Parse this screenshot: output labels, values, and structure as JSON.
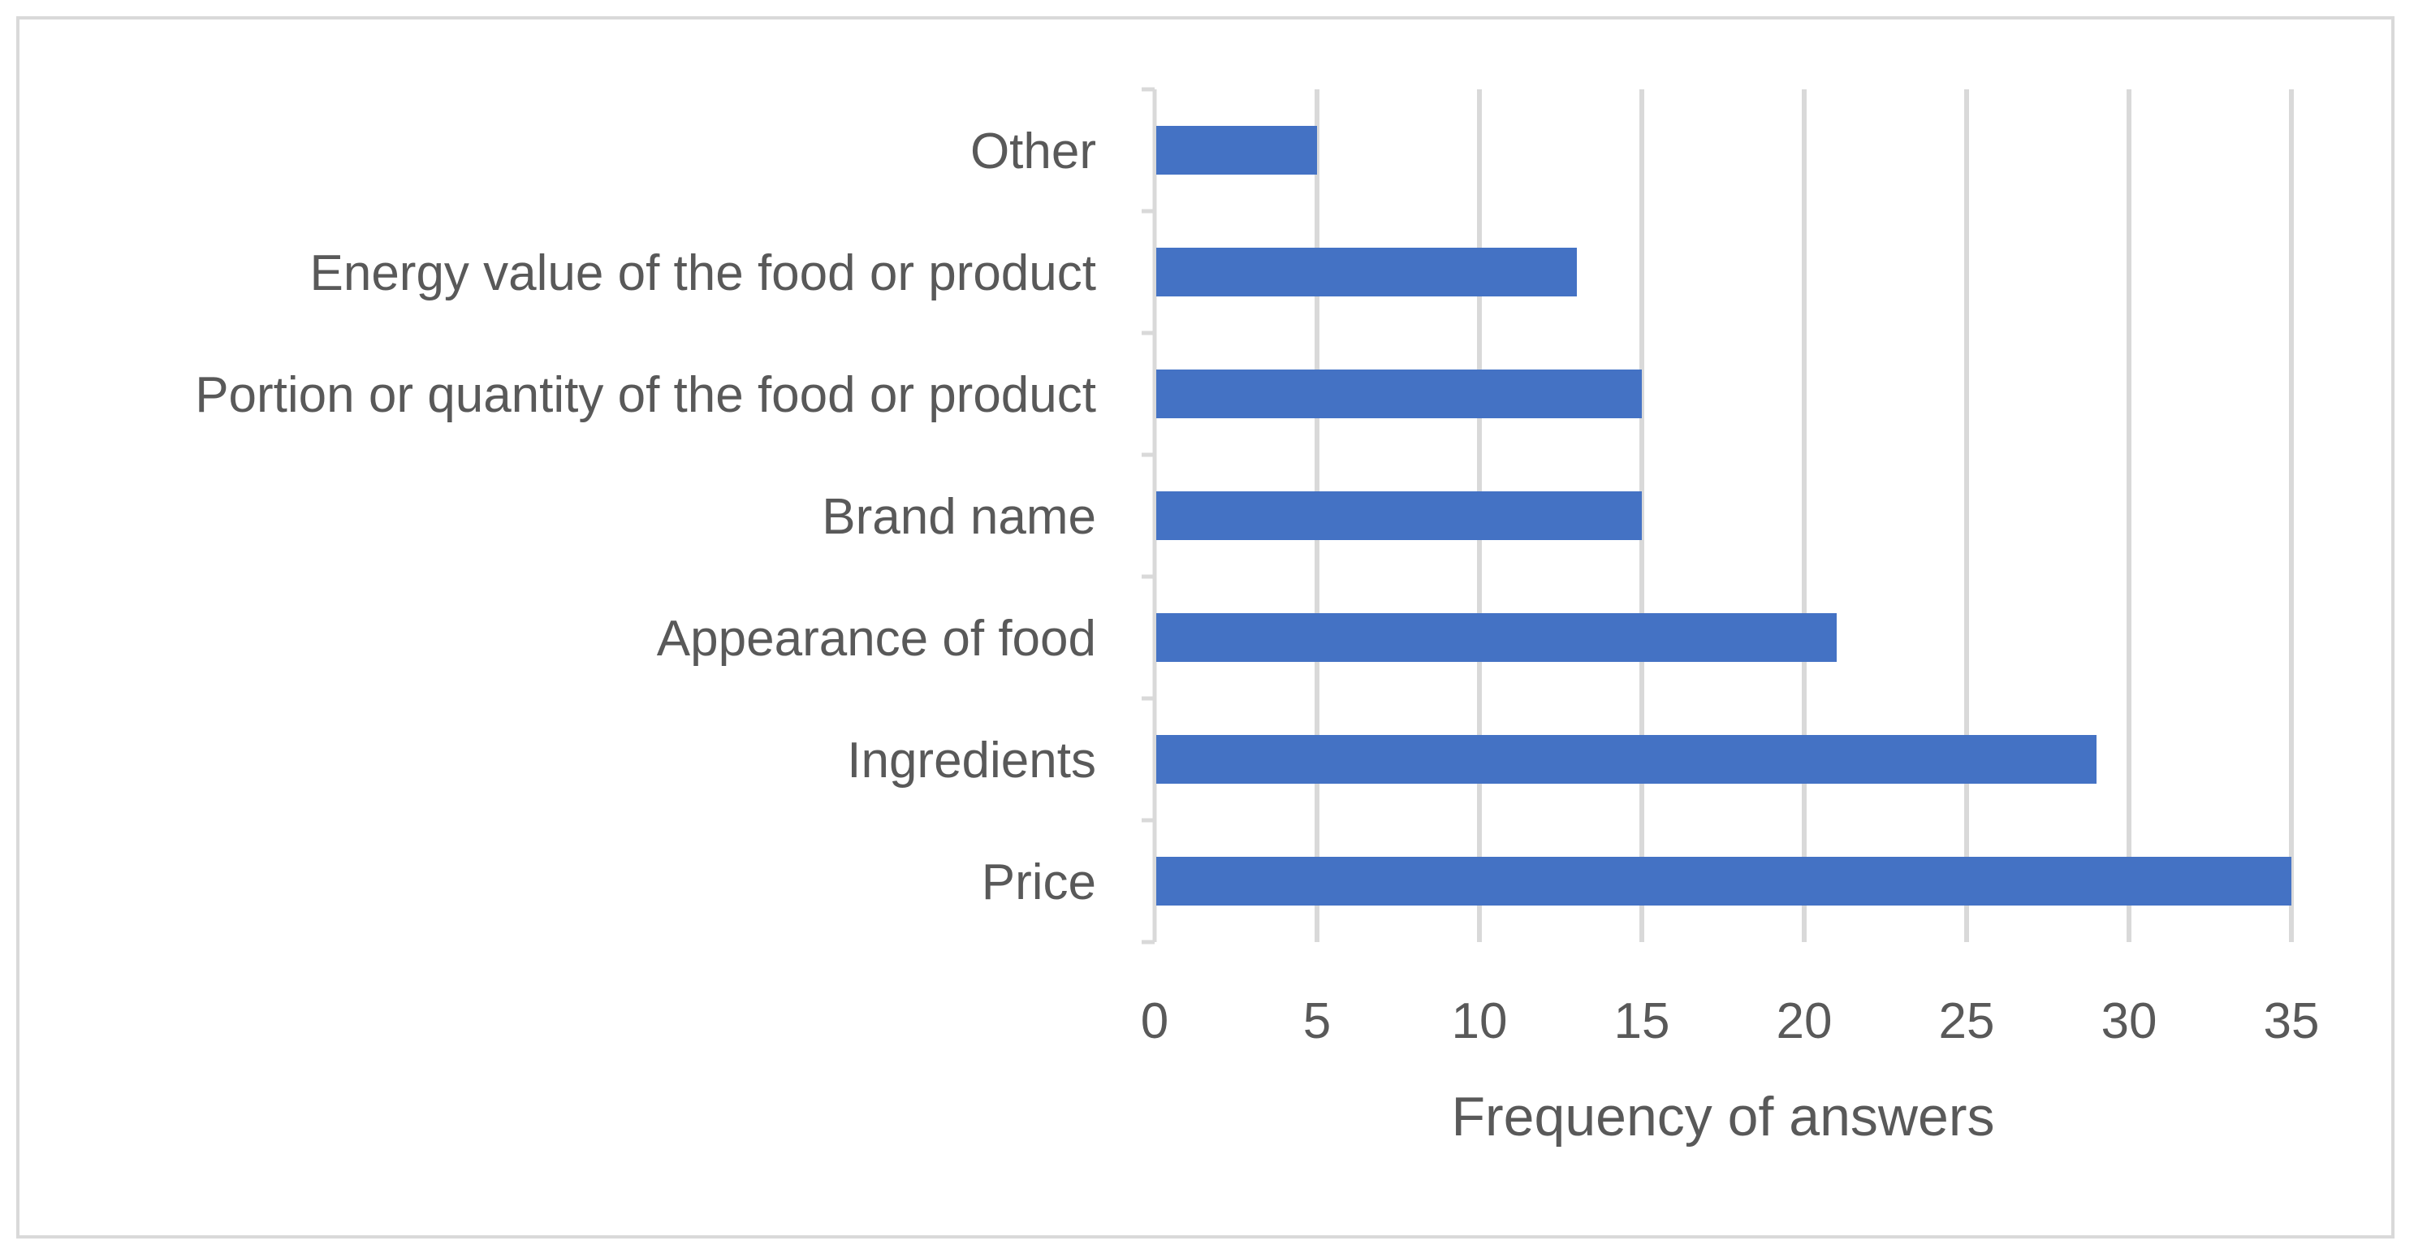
{
  "chart_data": {
    "type": "bar",
    "orientation": "horizontal",
    "categories": [
      "Price",
      "Ingredients",
      "Appearance of food",
      "Brand name",
      "Portion or quantity of the food or product",
      "Energy value of the food or product",
      "Other"
    ],
    "values": [
      35,
      29,
      21,
      15,
      15,
      13,
      5
    ],
    "title": "",
    "xlabel": "Frequency of answers",
    "ylabel": "",
    "xlim": [
      0,
      35
    ],
    "xticks": [
      0,
      5,
      10,
      15,
      20,
      25,
      30,
      35
    ],
    "grid": "vertical",
    "legend": "none",
    "bar_color": "#4472c4",
    "grid_color": "#d9d9d9",
    "text_color": "#595959"
  }
}
